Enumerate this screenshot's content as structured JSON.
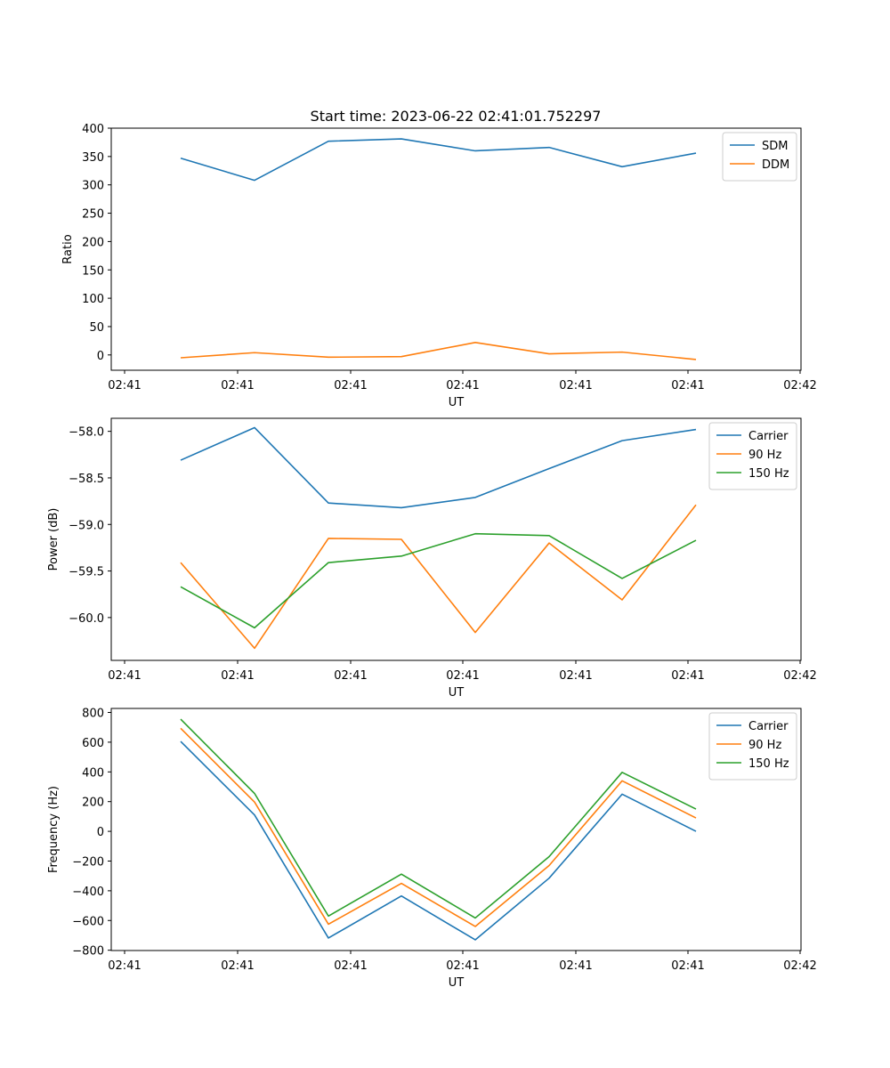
{
  "figure_title": "Start time: 2023-06-22 02:41:01.752297",
  "chart_data": [
    {
      "type": "line",
      "title": "Start time: 2023-06-22 02:41:01.752297",
      "xlabel": "UT",
      "ylabel": "Ratio",
      "x_tick_labels": [
        "02:41",
        "02:41",
        "02:41",
        "02:41",
        "02:41",
        "02:41",
        "02:42"
      ],
      "y_ticks": [
        0,
        50,
        100,
        150,
        200,
        250,
        300,
        350,
        400
      ],
      "y_tick_labels": [
        "0",
        "50",
        "100",
        "150",
        "200",
        "250",
        "300",
        "350",
        "400"
      ],
      "ylim": [
        -27,
        400
      ],
      "x_points": 8,
      "legend_position": "upper right",
      "grid": false,
      "series": [
        {
          "name": "SDM",
          "color": "#1f77b4",
          "values": [
            347,
            308,
            377,
            381,
            360,
            366,
            332,
            356
          ]
        },
        {
          "name": "DDM",
          "color": "#ff7f0e",
          "values": [
            -5,
            4,
            -4,
            -3,
            22,
            2,
            5,
            -8
          ]
        }
      ]
    },
    {
      "type": "line",
      "xlabel": "UT",
      "ylabel": "Power (dB)",
      "x_tick_labels": [
        "02:41",
        "02:41",
        "02:41",
        "02:41",
        "02:41",
        "02:41",
        "02:42"
      ],
      "y_ticks": [
        -60.0,
        -59.5,
        -59.0,
        -58.5,
        -58.0
      ],
      "y_tick_labels": [
        "−60.0",
        "−59.5",
        "−59.0",
        "−58.5",
        "−58.0"
      ],
      "ylim": [
        -60.46,
        -57.86
      ],
      "x_points": 8,
      "legend_position": "upper right",
      "grid": false,
      "series": [
        {
          "name": "Carrier",
          "color": "#1f77b4",
          "values": [
            -58.31,
            -57.96,
            -58.77,
            -58.82,
            -58.71,
            -58.4,
            -58.1,
            -57.98
          ]
        },
        {
          "name": "90 Hz",
          "color": "#ff7f0e",
          "values": [
            -59.41,
            -60.33,
            -59.15,
            -59.16,
            -60.16,
            -59.2,
            -59.81,
            -58.79
          ]
        },
        {
          "name": "150 Hz",
          "color": "#2ca02c",
          "values": [
            -59.67,
            -60.11,
            -59.41,
            -59.34,
            -59.1,
            -59.12,
            -59.58,
            -59.17
          ]
        }
      ]
    },
    {
      "type": "line",
      "xlabel": "UT",
      "ylabel": "Frequency (Hz)",
      "x_tick_labels": [
        "02:41",
        "02:41",
        "02:41",
        "02:41",
        "02:41",
        "02:41",
        "02:42"
      ],
      "y_ticks": [
        -800,
        -600,
        -400,
        -200,
        0,
        200,
        400,
        600,
        800
      ],
      "y_tick_labels": [
        "−800",
        "−600",
        "−400",
        "−200",
        "0",
        "200",
        "400",
        "600",
        "800"
      ],
      "ylim": [
        -802,
        827
      ],
      "x_points": 8,
      "legend_position": "upper right",
      "grid": false,
      "series": [
        {
          "name": "Carrier",
          "color": "#1f77b4",
          "values": [
            605,
            110,
            -718,
            -435,
            -730,
            -315,
            250,
            0
          ]
        },
        {
          "name": "90 Hz",
          "color": "#ff7f0e",
          "values": [
            693,
            197,
            -625,
            -350,
            -640,
            -230,
            340,
            90
          ]
        },
        {
          "name": "150 Hz",
          "color": "#2ca02c",
          "values": [
            755,
            255,
            -570,
            -288,
            -583,
            -170,
            397,
            150
          ]
        }
      ]
    }
  ]
}
